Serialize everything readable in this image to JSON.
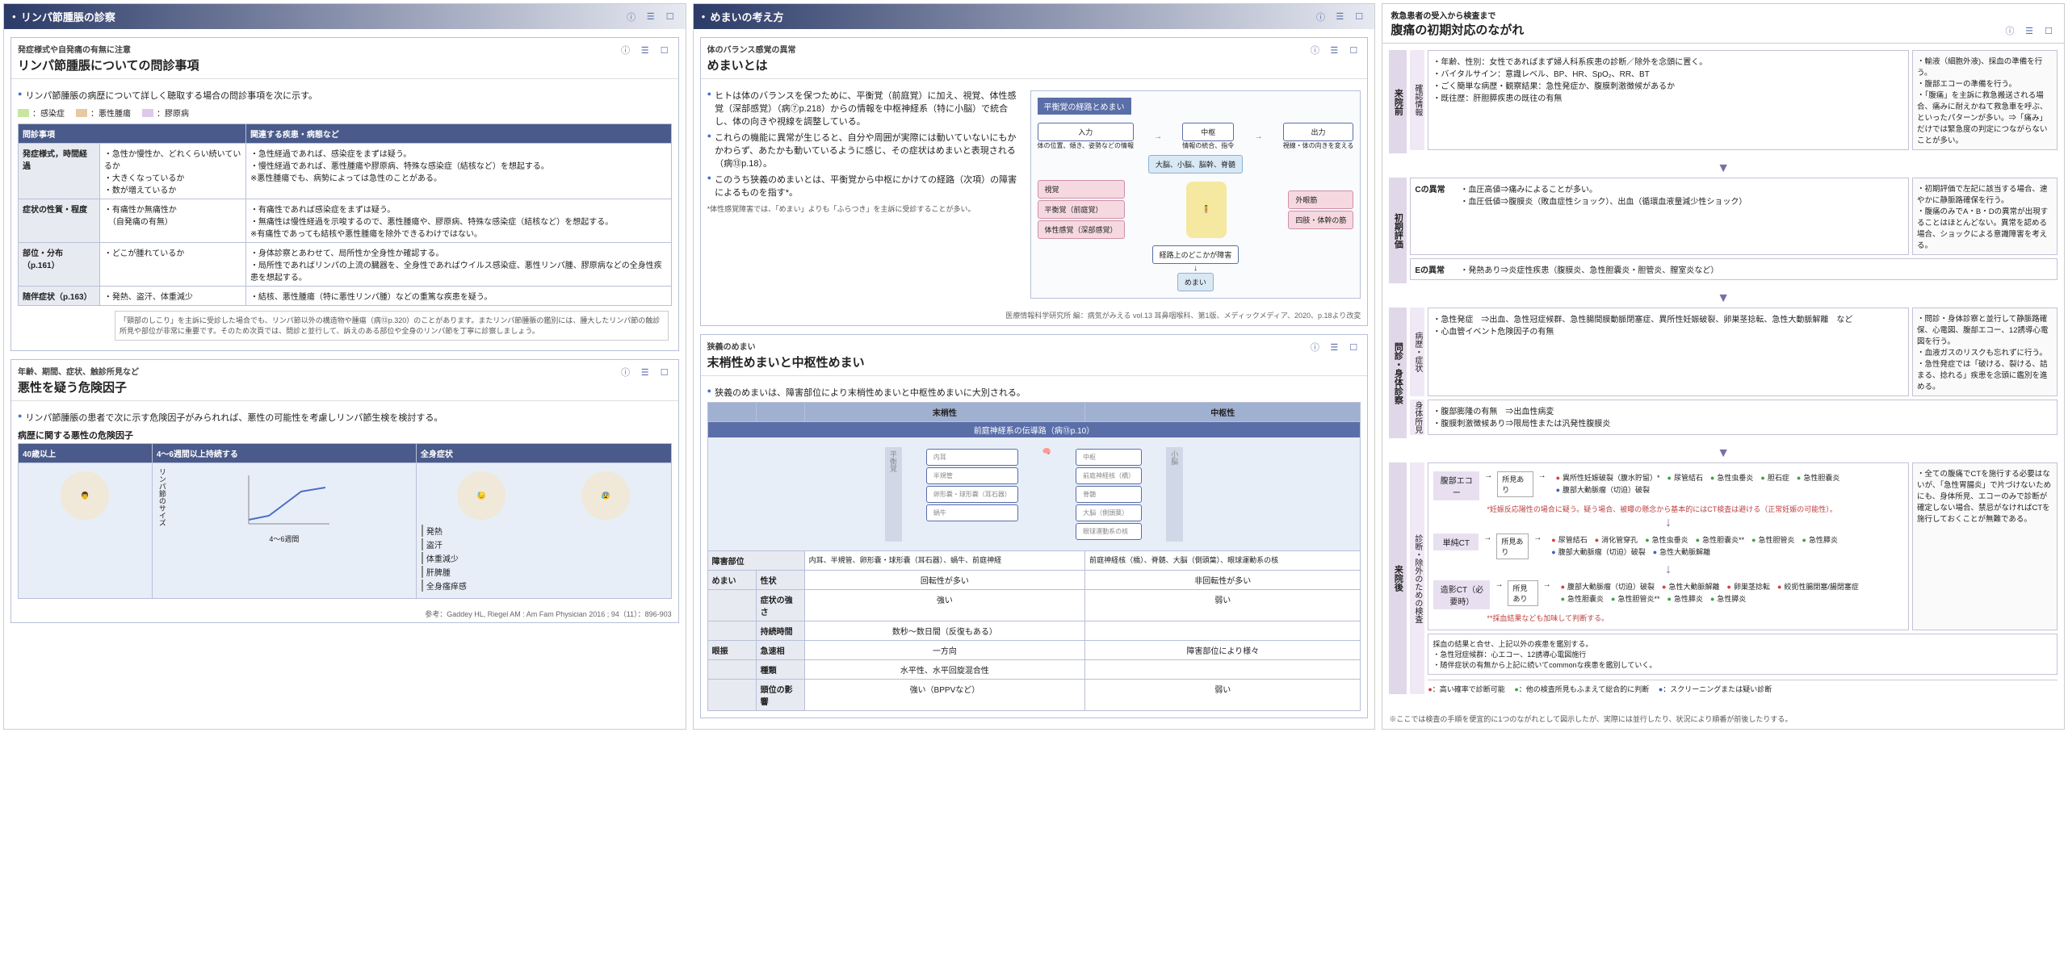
{
  "colors": {
    "infection": "#c8e6a0",
    "tumor": "#e8c8a0",
    "collagen": "#e0c8e8",
    "header_grad_from": "#2b3a67",
    "header_grad_to": "#e8eaf2",
    "accent": "#5a6ea8"
  },
  "panel1": {
    "header": "リンパ節腫脹の診察",
    "card1": {
      "sup": "発症様式や自発痛の有無に注意",
      "title": "リンパ節腫脹についての問診事項",
      "lead": "リンパ節腫脹の病歴について詳しく聴取する場合の問診事項を次に示す。",
      "legend": {
        "infection": "：感染症",
        "tumor": "：悪性腫瘍",
        "collagen": "：膠原病"
      },
      "th1": "問診事項",
      "th2": "関連する疾患・病態など",
      "rows": [
        {
          "k": "発症様式，時間経過",
          "q": "・急性か慢性か、どれくらい続いているか\n・大きくなっているか\n・数が増えているか",
          "a": "・急性経過であれば、感染症をまずは疑う。\n・慢性経過であれば、悪性腫瘍や膠原病、特殊な感染症（結核など）を想起する。\n※悪性腫瘍でも、病勢によっては急性のことがある。"
        },
        {
          "k": "症状の性質・程度",
          "q": "・有痛性か無痛性か\n　（自発痛の有無）",
          "a": "・有痛性であれば感染症をまずは疑う。\n・無痛性は慢性経過を示唆するので、悪性腫瘍や、膠原病、特殊な感染症（結核など）を想起する。\n※有痛性であっても結核や悪性腫瘍を除外できるわけではない。"
        },
        {
          "k": "部位・分布（p.161）",
          "q": "・どこが腫れているか",
          "a": "・身体診察とあわせて、局所性か全身性か確認する。\n・局所性であればリンパの上流の臓器を、全身性であればウイルス感染症、悪性リンパ腫、膠原病などの全身性疾患を想起する。"
        },
        {
          "k": "随伴症状（p.163）",
          "q": "・発熱、盗汗、体重減少",
          "a": "・結核、悪性腫瘍（特に悪性リンパ腫）などの重篤な疾患を疑う。"
        }
      ],
      "note": "「頸部のしこり」を主訴に受診した場合でも、リンパ節以外の構造物や腫瘍（病⑬p.320）のことがあります。またリンパ節腫脹の鑑別には、腫大したリンパ節の触診所見や部位が非常に重要です。そのため次頁では、問診と並行して、訴えのある部位や全身のリンパ節を丁寧に診察しましょう。"
    },
    "card2": {
      "sup": "年齢、期間、症状、触診所見など",
      "title": "悪性を疑う危険因子",
      "lead": "リンパ節腫脹の患者で次に示す危険因子がみられれば、悪性の可能性を考慮しリンパ節生検を検討する。",
      "box_title": "病歴に関する悪性の危険因子",
      "col1": "40歳以上",
      "col2": "4～6週間以上持続する",
      "col3": "全身症状",
      "symptoms": [
        "発熱",
        "盗汗",
        "体重減少",
        "肝脾腫",
        "全身瘙痒感"
      ],
      "axis_y": "リンパ節のサイズ",
      "axis_x": "4～6週間",
      "cite": "参考：Gaddey HL, Riegel AM : Am Fam Physician 2016 ; 94（11）：896-903"
    }
  },
  "panel2": {
    "header": "めまいの考え方",
    "card1": {
      "sup": "体のバランス感覚の異常",
      "title": "めまいとは",
      "b1": "ヒトは体のバランスを保つために、平衡覚（前庭覚）に加え、視覚、体性感覚（深部感覚）（病⑦p.218）からの情報を中枢神経系（特に小脳）で統合し、体の向きや視線を調整している。",
      "b2": "これらの機能に異常が生じると、自分や周囲が実際には動いていないにもかかわらず、あたかも動いているように感じ、その症状はめまいと表現される（病⑬p.18）。",
      "b3": "このうち狭義のめまいとは、平衡覚から中枢にかけての経路（次項）の障害によるものを指す*。",
      "foot": "*体性感覚障害では、「めまい」よりも「ふらつき」を主訴に受診することが多い。",
      "diag_title": "平衡覚の経路とめまい",
      "flow": {
        "in": "入力",
        "in_sub": "体の位置、傾き、姿勢などの情報",
        "mid": "中枢",
        "mid_sub": "情報の統合、指令",
        "mid_box": "大脳、小脳、脳幹、脊髄",
        "out": "出力",
        "out_sub": "視線・体の向きを変える",
        "sense1": "視覚",
        "sense2": "平衡覚（前庭覚）",
        "sense3": "体性感覚（深部感覚）",
        "eff1": "外眼筋",
        "eff2": "四肢・体幹の筋",
        "lesion": "経路上のどこかが障害",
        "result": "めまい"
      },
      "cite": "医療情報科学研究所 編：病気がみえる vol.13 耳鼻咽喉科、第1版、メディックメディア、2020、p.18より改変"
    },
    "card2": {
      "sup": "狭義のめまい",
      "title": "末梢性めまいと中枢性めまい",
      "lead": "狭義のめまいは、障害部位により末梢性めまいと中枢性めまいに大別される。",
      "col_peri": "末梢性",
      "col_cent": "中枢性",
      "anat_title": "前庭神経系の伝導路（病⑬p.10）",
      "lesion_label": "障害部位",
      "peri_parts": [
        "内耳",
        "半規管",
        "卵形嚢・球形嚢（耳石器）",
        "蝸牛"
      ],
      "peri_nerve": "前庭神経",
      "cent_parts": [
        "中枢",
        "前庭神経核（橋）",
        "脊髄",
        "大脳（側頭葉）",
        "眼球運動系の核"
      ],
      "side_label_l": "平衡覚",
      "side_label_r": "小脳",
      "rows": [
        {
          "g": "めまい",
          "k": "性状",
          "p": "回転性が多い",
          "c": "非回転性が多い"
        },
        {
          "g": "",
          "k": "症状の強さ",
          "p": "強い",
          "c": "弱い"
        },
        {
          "g": "",
          "k": "持続時間",
          "p": "数秒～数日間（反復もある）",
          "c": ""
        },
        {
          "g": "眼振",
          "k": "急速相",
          "p": "一方向",
          "c": "障害部位により様々"
        },
        {
          "g": "",
          "k": "種類",
          "p": "水平性、水平回旋混合性",
          "c": ""
        },
        {
          "g": "",
          "k": "頭位の影響",
          "p": "強い（BPPVなど）",
          "c": "弱い"
        }
      ]
    }
  },
  "panel3": {
    "header_sup": "救急患者の受入から検査まで",
    "header": "腹痛の初期対応のながれ",
    "pre": {
      "stage": "来院前",
      "sub": "確認情報",
      "items": [
        "年齢、性別：女性であればまず婦人科系疾患の診断／除外を念頭に置く。",
        "バイタルサイン：意識レベル、BP、HR、SpO₂、RR、BT",
        "ごく簡単な病歴・観察結果：急性発症か、腹膜刺激徴候があるか",
        "既往歴：肝胆膵疾患の既往の有無"
      ],
      "side": [
        "輸液（細胞外液)、採血の準備を行う。",
        "腹部エコーの準備を行う。",
        "「腹痛」を主訴に救急搬送される場合、痛みに耐えかねて救急車を呼ぶ、といったパターンが多い。⇒「痛み」だけでは緊急度の判定につながらないことが多い。"
      ]
    },
    "init": {
      "stage": "初期評価",
      "rowC": {
        "label": "Cの異常",
        "items": [
          "血圧高値⇒痛みによることが多い。",
          "血圧低値⇒腹膜炎（敗血症性ショック）、出血（循環血液量減少性ショック）"
        ]
      },
      "rowE": {
        "label": "Eの異常",
        "items": [
          "発熱あり⇒炎症性疾患（腹膜炎、急性胆嚢炎・胆管炎、膣室炎など）"
        ]
      },
      "side": [
        "初期評価で左記に該当する場合、速やかに静脈路確保を行う。",
        "腹痛のみでA・B・Dの異常が出現することはほとんどない。異常を認める場合、ショックによる意識障害を考える。"
      ]
    },
    "hx": {
      "stage": "問診・身体診察",
      "row1": {
        "label": "病歴・症状",
        "items": [
          "急性発症　⇒出血、急性冠症候群、急性腸間膜動脈閉塞症、異所性妊娠破裂、卵巣茎捻転、急性大動脈解離　など",
          "心血管イベント危険因子の有無"
        ]
      },
      "row2": {
        "label": "身体所見",
        "items": [
          "腹部膨隆の有無　⇒出血性病変",
          "腹膜刺激徴候あり⇒限局性または汎発性腹膜炎"
        ]
      },
      "side": [
        "問診・身体診察と並行して静脈路確保、心電図、腹部エコー、12誘導心電図を行う。",
        "血液ガスのリスクも忘れずに行う。",
        "急性発症では「破ける、裂ける、詰まる、捻れる」疾患を念頭に鑑別を進める。"
      ]
    },
    "exam": {
      "stage": "来院後",
      "sub": "診断・除外のための検査",
      "result_label": "所見あり",
      "steps": [
        {
          "name": "腹部エコー",
          "list": [
            {
              "d": "r",
              "t": "異所性妊娠破裂（腹水貯留）*"
            },
            {
              "d": "g",
              "t": "尿管結石"
            },
            {
              "d": "g",
              "t": "急性虫垂炎"
            },
            {
              "d": "g",
              "t": "胆石症"
            },
            {
              "d": "g",
              "t": "急性胆嚢炎"
            },
            {
              "d": "b",
              "t": "腹部大動脈瘤（切迫）破裂"
            }
          ],
          "note": "*妊娠反応陽性の場合に疑う。疑う場合、被曝の懸念から基本的にはCT検査は避ける（正常妊娠の可能性）。"
        },
        {
          "name": "単純CT",
          "list": [
            {
              "d": "r",
              "t": "尿管結石"
            },
            {
              "d": "r",
              "t": "消化管穿孔"
            },
            {
              "d": "g",
              "t": "急性虫垂炎"
            },
            {
              "d": "g",
              "t": "急性胆嚢炎**"
            },
            {
              "d": "g",
              "t": "急性胆管炎"
            },
            {
              "d": "g",
              "t": "急性膵炎"
            },
            {
              "d": "b",
              "t": "腹部大動脈瘤（切迫）破裂"
            },
            {
              "d": "b",
              "t": "急性大動脈解離"
            }
          ]
        },
        {
          "name": "造影CT（必要時）",
          "list": [
            {
              "d": "r",
              "t": "腹部大動脈瘤（切迫）破裂"
            },
            {
              "d": "r",
              "t": "急性大動脈解離"
            },
            {
              "d": "r",
              "t": "卵巣茎捻転"
            },
            {
              "d": "r",
              "t": "絞扼性腸閉塞/腸閉塞症"
            },
            {
              "d": "g",
              "t": "急性胆嚢炎"
            },
            {
              "d": "g",
              "t": "急性胆管炎**"
            },
            {
              "d": "g",
              "t": "急性膵炎"
            },
            {
              "d": "g",
              "t": "急性膵炎"
            }
          ],
          "note": "**採血結果なども加味して判断する。"
        }
      ],
      "side": [
        "全ての腹痛でCTを施行する必要はないが、「急性胃腸炎」で片づけないためにも、身体所見、エコーのみで診断が確定しない場合、禁忌がなければCTを施行しておくことが無難である。"
      ],
      "bottom": "採血の結果と合せ、上記以外の疾患を鑑別する。\n・急性冠症候群：心エコー、12誘導心電図施行\n・随伴症状の有無から上記に続いてcommonな疾患を鑑別していく。",
      "legend": {
        "r": "：高い確率で診断可能",
        "g": "：他の検査所見もふまえて総合的に判断",
        "b": "：スクリーニングまたは疑い診断"
      }
    },
    "footnote": "※ここでは検査の手順を便宜的に1つのながれとして図示したが、実際には並行したり、状況により順番が前後したりする。"
  }
}
